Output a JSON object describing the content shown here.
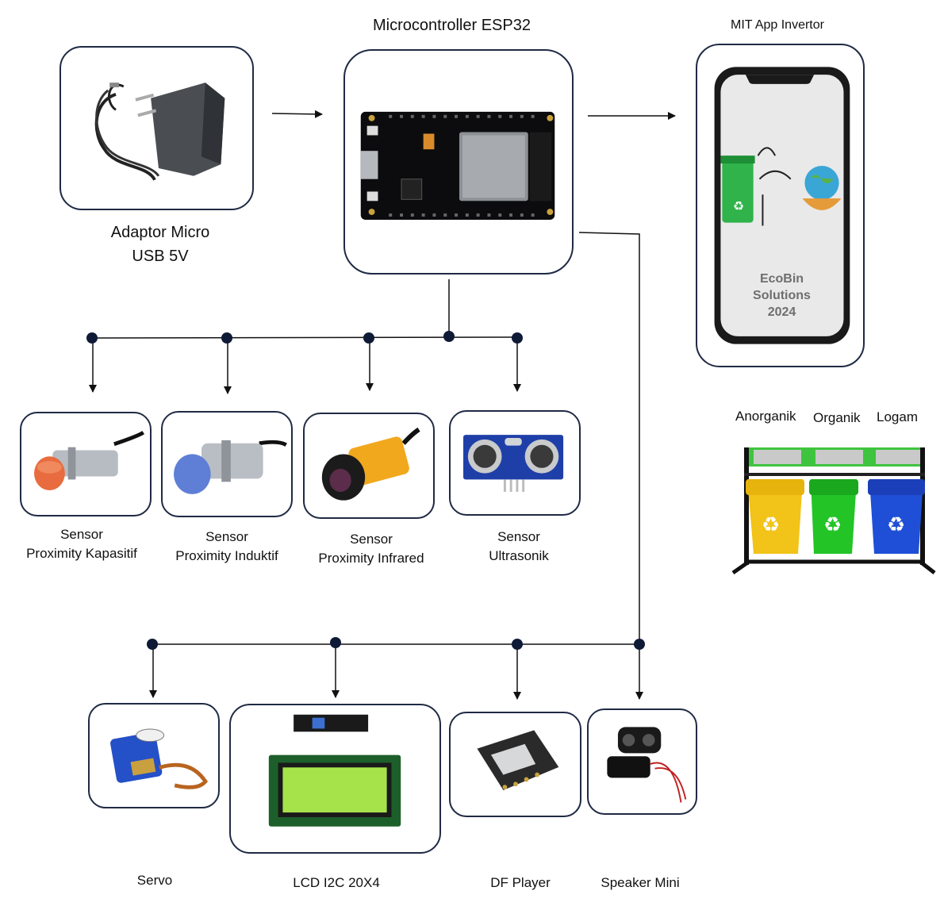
{
  "nodes": {
    "adaptor": {
      "line1": "Adaptor Micro",
      "line2": "USB 5V"
    },
    "esp32": {
      "title": "Microcontroller ESP32"
    },
    "app": {
      "title": "MIT App Invertor",
      "screen_line1": "EcoBin",
      "screen_line2": "Solutions",
      "screen_line3": "2024"
    },
    "sensor_kapasitif": {
      "line1": "Sensor",
      "line2": "Proximity Kapasitif"
    },
    "sensor_induktif": {
      "line1": "Sensor",
      "line2": "Proximity Induktif"
    },
    "sensor_infrared": {
      "line1": "Sensor",
      "line2": "Proximity Infrared"
    },
    "sensor_ultrasonik": {
      "line1": "Sensor",
      "line2": "Ultrasonik"
    },
    "servo": {
      "label": "Servo"
    },
    "lcd": {
      "label": "LCD I2C 20X4"
    },
    "dfplayer": {
      "label": "DF Player"
    },
    "speaker": {
      "label": "Speaker Mini"
    }
  },
  "bins": {
    "anorganik": "Anorganik",
    "organik": "Organik",
    "logam": "Logam"
  },
  "colors": {
    "border": "#1f2a44",
    "wire": "#111111",
    "bin_yellow": "#f2c318",
    "bin_green": "#22c426",
    "bin_blue": "#1f4fd6",
    "lcd_screen": "#a6e34a"
  }
}
